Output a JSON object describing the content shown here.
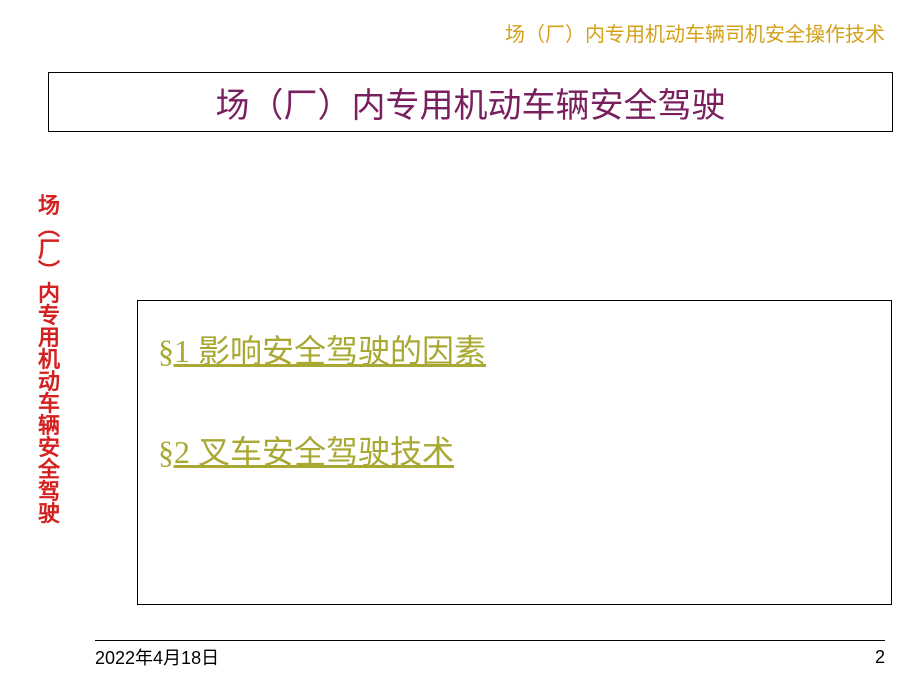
{
  "header": {
    "subtitle": "场（厂）内专用机动车辆司机安全操作技术"
  },
  "title": {
    "text": "场（厂）内专用机动车辆安全驾驶"
  },
  "sidebar": {
    "text": "场（厂）内专用机动车辆安全驾驶",
    "chars": [
      "场",
      "︵",
      "厂",
      "︶",
      "内",
      "专",
      "用",
      "机",
      "动",
      "车",
      "辆",
      "安",
      "全",
      "驾",
      "驶"
    ]
  },
  "content": {
    "sections": [
      {
        "label": "§1 影响安全驾驶的因素"
      },
      {
        "label": "§2 叉车安全驾驶技术"
      }
    ]
  },
  "footer": {
    "date": "2022年4月18日",
    "page": "2"
  },
  "colors": {
    "header_text": "#d4a017",
    "title_text": "#7a1f5e",
    "sidebar_text": "#d42020",
    "link_text": "#a8a832",
    "border": "#000000",
    "background": "#ffffff"
  },
  "typography": {
    "header_fontsize": 20,
    "title_fontsize": 34,
    "sidebar_fontsize": 22,
    "link_fontsize": 32,
    "footer_fontsize": 18
  }
}
